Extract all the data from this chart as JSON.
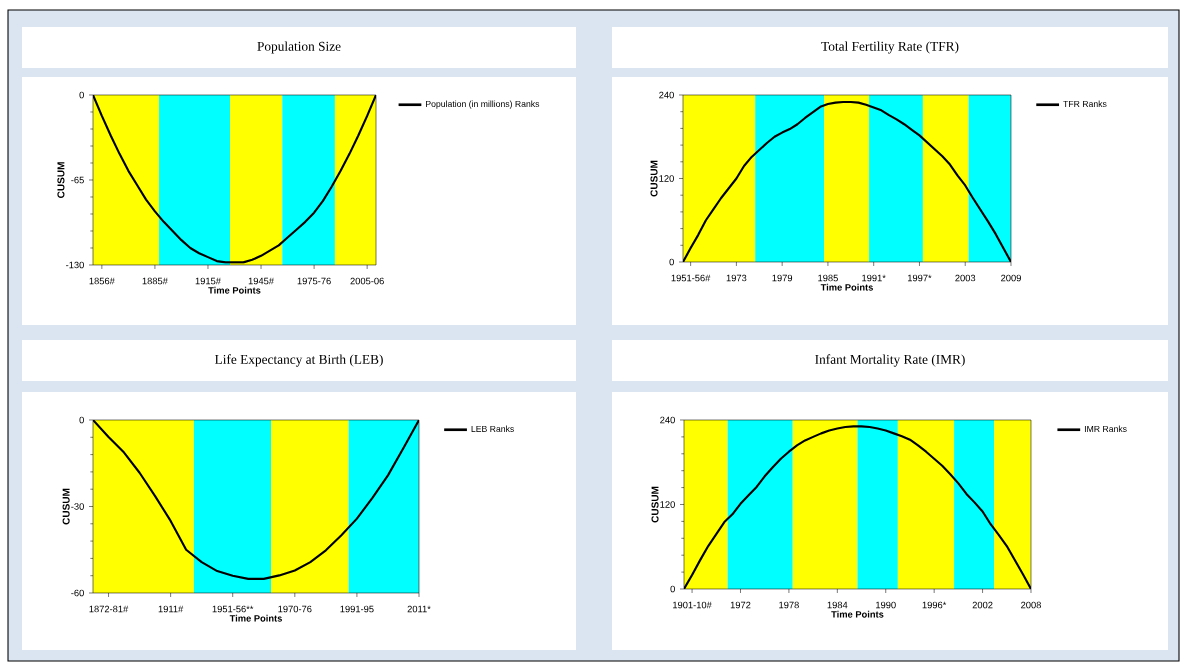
{
  "chart_data": [
    {
      "type": "line",
      "title": "Population Size",
      "xlabel": "Time Points",
      "ylabel": "CUSUM",
      "categories": [
        null,
        "1856#",
        null,
        null,
        null,
        null,
        null,
        "1885#",
        null,
        null,
        null,
        null,
        null,
        "1915#",
        null,
        null,
        null,
        null,
        null,
        "1945#",
        null,
        null,
        null,
        null,
        null,
        "1975-76",
        null,
        null,
        null,
        null,
        null,
        "2005-06",
        null
      ],
      "series": [
        {
          "name": "Population (in millions) Ranks",
          "color": "#000000",
          "values": [
            0,
            -16,
            -31,
            -45,
            -58,
            -69,
            -80,
            -89,
            -97,
            -104,
            -111,
            -117,
            -121,
            -124,
            -127,
            -128,
            -128,
            -128,
            -126,
            -123,
            -119,
            -115,
            -109,
            -103,
            -97,
            -90,
            -81,
            -70,
            -58,
            -45,
            -31,
            -16,
            0
          ]
        }
      ],
      "ylim": [
        -130,
        0
      ],
      "yticks": [
        -130,
        -65,
        0
      ],
      "legend": "top right",
      "line_style": "solid"
    },
    {
      "type": "line",
      "title": "Total Fertility Rate (TFR)",
      "xlabel": "Time Points",
      "ylabel": "CUSUM",
      "categories": [
        null,
        "1951-56#",
        null,
        null,
        null,
        null,
        null,
        "1973",
        null,
        null,
        null,
        null,
        null,
        "1979",
        null,
        null,
        null,
        null,
        null,
        "1985",
        null,
        null,
        null,
        null,
        null,
        "1991*",
        null,
        null,
        null,
        null,
        null,
        "1997*",
        null,
        null,
        null,
        null,
        null,
        "2003",
        null,
        null,
        null,
        null,
        null,
        "2009"
      ],
      "series": [
        {
          "name": "TFR Ranks",
          "color": "#000000",
          "values": [
            0,
            20,
            39,
            60,
            76,
            92,
            106,
            120,
            138,
            151,
            161,
            171,
            180,
            186,
            191,
            198,
            207,
            215,
            223,
            227,
            229,
            230,
            230,
            229,
            226,
            222,
            218,
            211,
            205,
            198,
            190,
            182,
            172,
            162,
            152,
            140,
            124,
            110,
            92,
            75,
            58,
            40,
            20,
            0
          ]
        }
      ],
      "ylim": [
        0,
        240
      ],
      "yticks": [
        0,
        120,
        240
      ],
      "legend": "top right",
      "line_style": "solid"
    },
    {
      "type": "line",
      "title": "Life Expectancy at Birth (LEB)",
      "xlabel": "Time Points",
      "ylabel": "CUSUM",
      "categories": [
        null,
        "1872-81#",
        null,
        null,
        null,
        "1911#",
        null,
        null,
        null,
        "1951-56**",
        null,
        null,
        null,
        "1970-76",
        null,
        null,
        null,
        "1991-95",
        null,
        null,
        null,
        "2011*"
      ],
      "series": [
        {
          "name": "LEB Ranks",
          "color": "#000000",
          "values": [
            0,
            -5.9,
            -11.3,
            -18.3,
            -26.4,
            -35,
            -45,
            -49.3,
            -52.4,
            -54,
            -55.1,
            -55.1,
            -53.9,
            -52.2,
            -49.3,
            -45.2,
            -40,
            -34.2,
            -27,
            -19.2,
            -9.7,
            0
          ]
        }
      ],
      "ylim": [
        -60,
        0
      ],
      "yticks": [
        -60,
        -30,
        0
      ],
      "legend": "top right",
      "line_style": "solid"
    },
    {
      "type": "line",
      "title": "Infant Mortality Rate (IMR)",
      "xlabel": "Time Points",
      "ylabel": "CUSUM",
      "categories": [
        null,
        "1901-10#",
        null,
        null,
        null,
        null,
        null,
        "1972",
        null,
        null,
        null,
        null,
        null,
        "1978",
        null,
        null,
        null,
        null,
        null,
        "1984",
        null,
        null,
        null,
        null,
        null,
        "1990",
        null,
        null,
        null,
        null,
        null,
        "1996*",
        null,
        null,
        null,
        null,
        null,
        "2002",
        null,
        null,
        null,
        null,
        null,
        "2008"
      ],
      "series": [
        {
          "name": "IMR Ranks",
          "color": "#000000",
          "values": [
            0,
            20,
            41,
            61,
            78,
            95,
            106,
            121,
            133,
            145,
            160,
            173,
            185,
            195,
            204,
            211,
            216,
            221,
            225,
            228,
            230,
            231,
            231,
            230,
            228,
            225,
            221,
            217,
            212,
            204,
            195,
            185,
            175,
            163,
            150,
            135,
            123,
            110,
            92,
            77,
            61,
            41,
            21,
            0
          ]
        }
      ],
      "ylim": [
        0,
        240
      ],
      "yticks": [
        0,
        120,
        240
      ],
      "legend": "top right",
      "line_style": "solid"
    }
  ]
}
